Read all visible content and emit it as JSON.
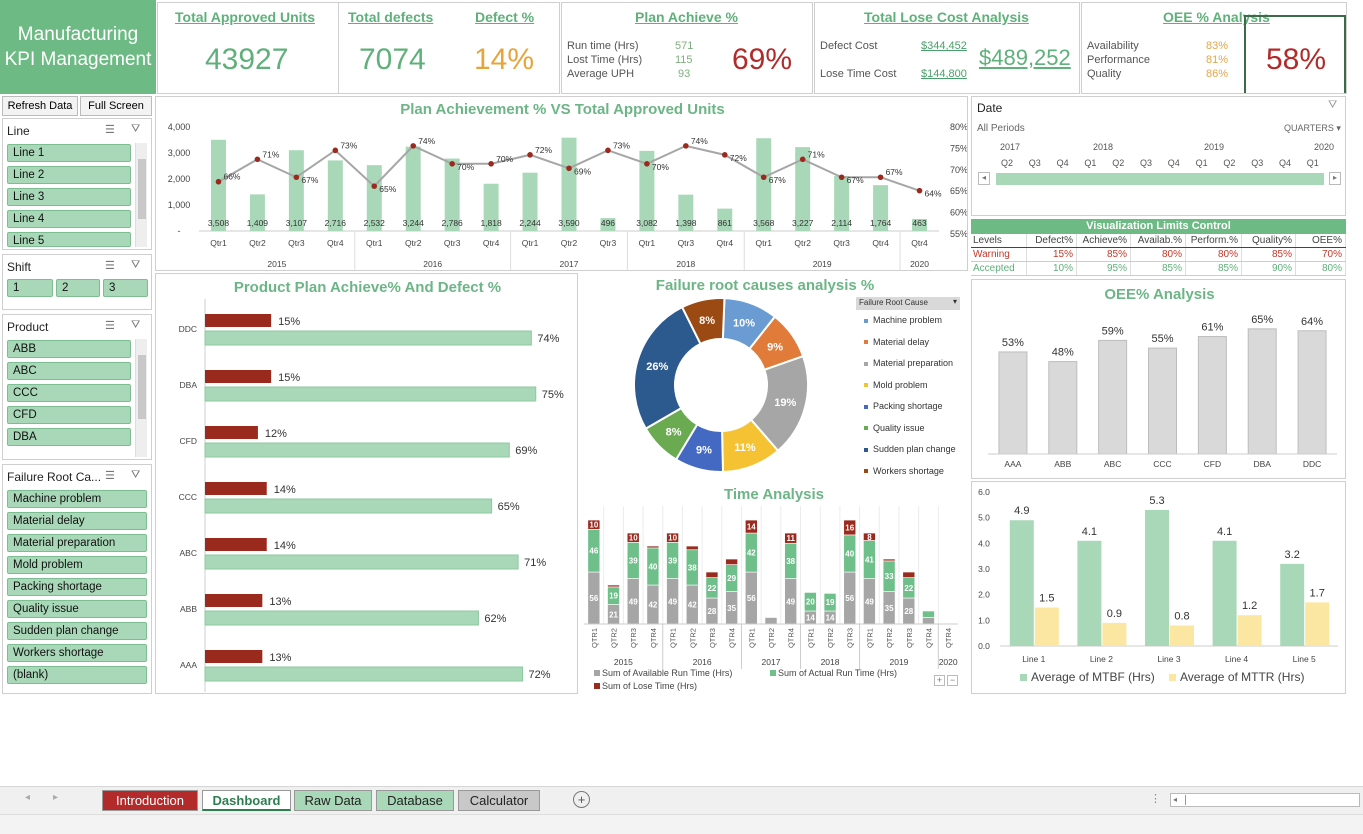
{
  "title": {
    "line1": "Manufacturing",
    "line2": "KPI Management"
  },
  "kpis": {
    "approved": {
      "label": "Total Approved Units",
      "value": "43927"
    },
    "defects": {
      "label": "Total defects",
      "value": "7074"
    },
    "defect_pct": {
      "label": "Defect %",
      "value": "14%"
    },
    "plan": {
      "label": "Plan Achieve %",
      "value": "69%",
      "rows": [
        {
          "label": "Run time (Hrs)",
          "value": "571"
        },
        {
          "label": "Lost Time (Hrs)",
          "value": "115"
        },
        {
          "label": "Average UPH",
          "value": "93"
        }
      ]
    },
    "lose_cost": {
      "label": "Total Lose Cost Analysis",
      "value": "$489,252",
      "rows": [
        {
          "label": "Defect Cost",
          "value": "$344,452"
        },
        {
          "label": "Lose Time Cost",
          "value": "$144,800"
        }
      ]
    },
    "oee": {
      "label": "OEE % Analysis",
      "value": "58%",
      "rows": [
        {
          "label": "Availability",
          "value": "83%"
        },
        {
          "label": "Performance",
          "value": "81%"
        },
        {
          "label": "Quality",
          "value": "86%"
        }
      ]
    }
  },
  "buttons": {
    "refresh": "Refresh Data",
    "full": "Full Screen"
  },
  "slicers": {
    "line": {
      "title": "Line",
      "items": [
        "Line 1",
        "Line 2",
        "Line 3",
        "Line 4",
        "Line 5"
      ]
    },
    "shift": {
      "title": "Shift",
      "items": [
        "1",
        "2",
        "3"
      ]
    },
    "product": {
      "title": "Product",
      "items": [
        "ABB",
        "ABC",
        "CCC",
        "CFD",
        "DBA"
      ]
    },
    "failure": {
      "title": "Failure Root Ca...",
      "items": [
        "Machine problem",
        "Material delay",
        "Material preparation",
        "Mold problem",
        "Packing shortage",
        "Quality issue",
        "Sudden plan change",
        "Workers shortage",
        "(blank)"
      ]
    }
  },
  "date_filter": {
    "title": "Date",
    "period": "All Periods",
    "level": "QUARTERS",
    "years": [
      "2017",
      "2018",
      "2019",
      "2020"
    ],
    "quarters": [
      "Q2",
      "Q3",
      "Q4",
      "Q1",
      "Q2",
      "Q3",
      "Q4",
      "Q1",
      "Q2",
      "Q3",
      "Q4",
      "Q1"
    ]
  },
  "limits": {
    "title": "Visualization Limits Control",
    "headers": [
      "Levels",
      "Defect%",
      "Achieve%",
      "Availab.%",
      "Perform.%",
      "Quality%",
      "OEE%"
    ],
    "rows": [
      {
        "cells": [
          "Warning",
          "15%",
          "85%",
          "80%",
          "80%",
          "85%",
          "70%"
        ],
        "color": "#c0392b"
      },
      {
        "cells": [
          "Accepted",
          "10%",
          "95%",
          "85%",
          "85%",
          "90%",
          "80%"
        ],
        "color": "#5fb07a"
      }
    ]
  },
  "tabs": [
    {
      "label": "Introduction",
      "bg": "#b32a2a",
      "fg": "#ffffff"
    },
    {
      "label": "Dashboard",
      "bg": "#ffffff",
      "fg": "#2e7d4f"
    },
    {
      "label": "Raw Data",
      "bg": "#a9d8b8",
      "fg": "#222222"
    },
    {
      "label": "Database",
      "bg": "#a9d8b8",
      "fg": "#222222"
    },
    {
      "label": "Calculator",
      "bg": "#c8c8c8",
      "fg": "#222222"
    }
  ],
  "chart_data": [
    {
      "id": "plan",
      "type": "bar",
      "title": "Plan Achievement % VS Total Approved Units",
      "categories": [
        "Qtr1",
        "Qtr2",
        "Qtr3",
        "Qtr4",
        "Qtr1",
        "Qtr2",
        "Qtr3",
        "Qtr4",
        "Qtr1",
        "Qtr2",
        "Qtr3",
        "Qtr1",
        "Qtr3",
        "Qtr4",
        "Qtr1",
        "Qtr2",
        "Qtr3",
        "Qtr4",
        "Qtr4"
      ],
      "years": [
        {
          "label": "2015",
          "count": 4
        },
        {
          "label": "2016",
          "count": 4
        },
        {
          "label": "2017",
          "count": 3
        },
        {
          "label": "2018",
          "count": 3
        },
        {
          "label": "2019",
          "count": 4
        },
        {
          "label": "2020",
          "count": 1
        }
      ],
      "series": [
        {
          "type": "bar",
          "values": [
            3508,
            1409,
            3107,
            2716,
            2532,
            3244,
            2786,
            1818,
            2244,
            3590,
            496,
            3082,
            1398,
            861,
            3568,
            3227,
            2114,
            1764,
            463
          ],
          "color": "#a9d8b8"
        },
        {
          "type": "line",
          "values": [
            66,
            71,
            67,
            73,
            65,
            74,
            70,
            70,
            72,
            69,
            73,
            70,
            74,
            72,
            67,
            71,
            67,
            67,
            64
          ],
          "color": "#a6a6a6"
        }
      ],
      "y_ticks": [
        "4,000",
        "3,000",
        "2,000",
        "1,000",
        "-"
      ],
      "ylim": [
        0,
        4000
      ],
      "y2_ticks": [
        "80%",
        "75%",
        "70%",
        "65%",
        "60%",
        "55%"
      ],
      "y2lim": [
        55,
        80
      ]
    },
    {
      "id": "product",
      "type": "bar",
      "title": "Product Plan Achieve% And  Defect %",
      "categories": [
        "DDC",
        "DBA",
        "CFD",
        "CCC",
        "ABC",
        "ABB",
        "AAA"
      ],
      "series": [
        {
          "name": "Defect %",
          "values": [
            15,
            15,
            12,
            14,
            14,
            13,
            13
          ],
          "color": "#9b2a1e"
        },
        {
          "name": "Plan Achieve %",
          "values": [
            74,
            75,
            69,
            65,
            71,
            62,
            72
          ],
          "color": "#a9d8b8"
        }
      ],
      "xlim": [
        0,
        100
      ]
    },
    {
      "id": "failure",
      "type": "pie",
      "title": "Failure root causes analysis %",
      "legend_title": "Failure Root Cause",
      "slices": [
        {
          "label": "Machine problem",
          "value": 10,
          "color": "#6a9bd3"
        },
        {
          "label": "Material delay",
          "value": 9,
          "color": "#e07b3a"
        },
        {
          "label": "Material preparation",
          "value": 19,
          "color": "#a6a6a6"
        },
        {
          "label": "Mold problem",
          "value": 11,
          "color": "#f5c233"
        },
        {
          "label": "Packing shortage",
          "value": 9,
          "color": "#4369c2"
        },
        {
          "label": "Quality issue",
          "value": 8,
          "color": "#6aab52"
        },
        {
          "label": "Sudden plan change",
          "value": 26,
          "color": "#2d5a8e"
        },
        {
          "label": "Workers shortage",
          "value": 8,
          "color": "#9a4a12"
        }
      ]
    },
    {
      "id": "oee",
      "type": "bar",
      "title": "OEE% Analysis",
      "categories": [
        "AAA",
        "ABB",
        "ABC",
        "CCC",
        "CFD",
        "DBA",
        "DDC"
      ],
      "values": [
        53,
        48,
        59,
        55,
        61,
        65,
        64
      ],
      "color": "#d9d9d9",
      "ylim": [
        0,
        70
      ]
    },
    {
      "id": "time",
      "type": "bar",
      "title": "Time Analysis",
      "categories": [
        "QTR1",
        "QTR2",
        "QTR3",
        "QTR4",
        "QTR1",
        "QTR2",
        "QTR3",
        "QTR4",
        "QTR1",
        "QTR2",
        "QTR4",
        "QTR1",
        "QTR2",
        "QTR3",
        "QTR1",
        "QTR2",
        "QTR3",
        "QTR4",
        "QTR4"
      ],
      "years": [
        {
          "label": "2015",
          "count": 4
        },
        {
          "label": "2016",
          "count": 4
        },
        {
          "label": "2017",
          "count": 3
        },
        {
          "label": "2018",
          "count": 3
        },
        {
          "label": "2019",
          "count": 4
        },
        {
          "label": "2020",
          "count": 1
        }
      ],
      "series": [
        {
          "name": "Sum of Available Run Time (Hrs)",
          "values": [
            56,
            21,
            49,
            42,
            49,
            42,
            28,
            35,
            56,
            7,
            49,
            14,
            14,
            56,
            49,
            35,
            28,
            7,
            0
          ],
          "color": "#a6a6a6"
        },
        {
          "name": "Sum of Actual Run Time (Hrs)",
          "values": [
            46,
            19,
            39,
            40,
            39,
            38,
            22,
            29,
            42,
            0,
            38,
            20,
            19,
            40,
            41,
            33,
            22,
            7,
            0
          ],
          "color": "#6fbf8a"
        },
        {
          "name": "Sum of Lose Time (Hrs)",
          "values": [
            10,
            2,
            10,
            2,
            10,
            4,
            6,
            6,
            14,
            0,
            11,
            0,
            0,
            16,
            8,
            2,
            6,
            0,
            0
          ],
          "color": "#9b2a1e"
        }
      ],
      "ylim": [
        0,
        125
      ]
    },
    {
      "id": "mtbf",
      "type": "bar",
      "categories": [
        "Line 1",
        "Line 2",
        "Line 3",
        "Line 4",
        "Line 5"
      ],
      "series": [
        {
          "name": "Average of MTBF (Hrs)",
          "values": [
            4.9,
            4.1,
            5.3,
            4.1,
            3.2
          ],
          "color": "#a9d8b8"
        },
        {
          "name": "Average of MTTR (Hrs)",
          "values": [
            1.5,
            0.9,
            0.8,
            1.2,
            1.7
          ],
          "color": "#fbe7a1"
        }
      ],
      "y_ticks": [
        "6.0",
        "5.0",
        "4.0",
        "3.0",
        "2.0",
        "1.0",
        "0.0"
      ],
      "ylim": [
        0,
        6
      ]
    }
  ]
}
